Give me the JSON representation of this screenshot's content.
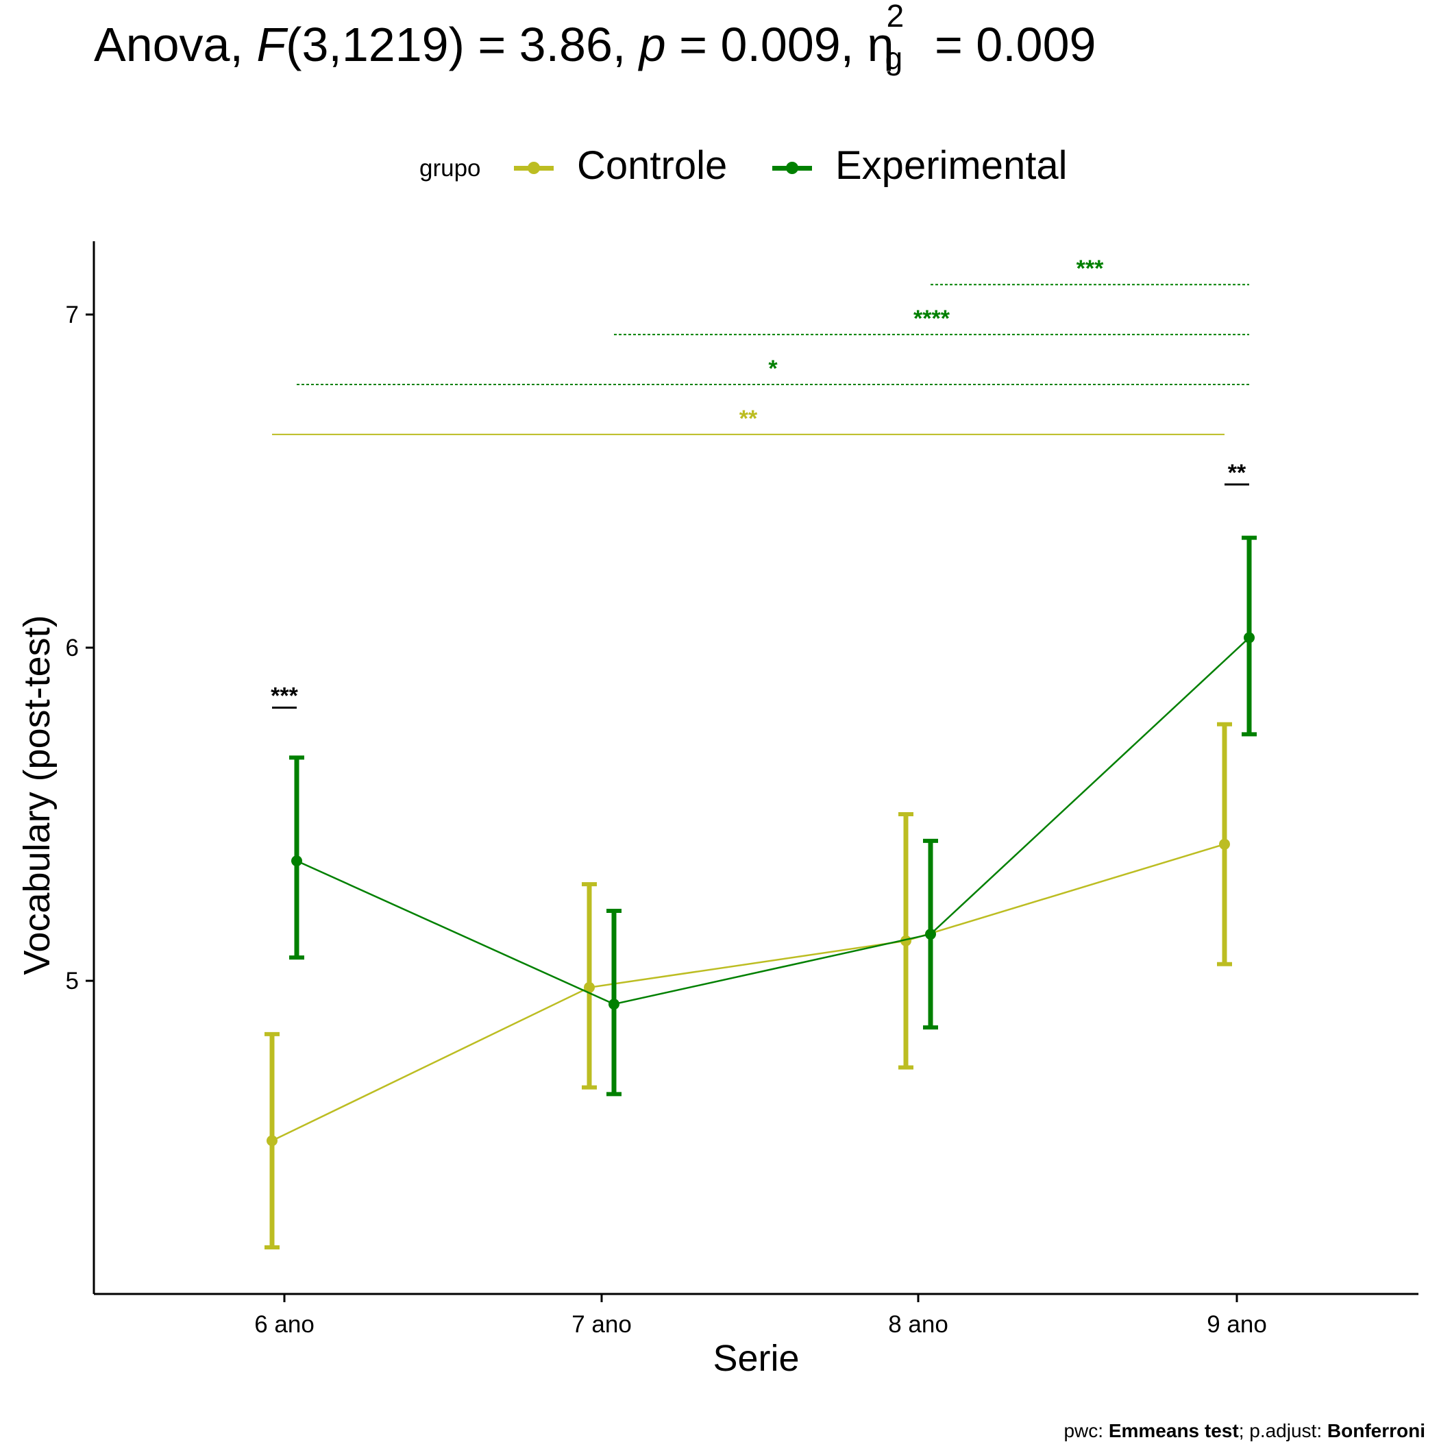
{
  "title": {
    "prefix": "Anova, ",
    "f_symbol": "F",
    "f_args": "(3,1219) = 3.86, ",
    "p_symbol": "p",
    "p_value": " = 0.009, ",
    "eta_symbol": "η",
    "eta_sup": "2",
    "eta_sub": "g",
    "eta_value": " = 0.009"
  },
  "legend": {
    "title": "grupo",
    "items": [
      {
        "label": "Controle",
        "color": "#BCBD22"
      },
      {
        "label": "Experimental",
        "color": "#008000"
      }
    ]
  },
  "caption": {
    "prefix": "pwc: ",
    "test": "Emmeans test",
    "middle": "; p.adjust: ",
    "method": "Bonferroni"
  },
  "chart_data": {
    "type": "line",
    "title": "Anova, F(3,1219) = 3.86, p = 0.009, ηg2 = 0.009",
    "xlabel": "Serie",
    "ylabel": "Vocabulary (post-test)",
    "categories": [
      "6 ano",
      "7 ano",
      "8 ano",
      "9 ano"
    ],
    "ylim": [
      4.06,
      7.22
    ],
    "yticks": [
      5,
      6,
      7
    ],
    "grid": false,
    "legend_position": "top",
    "series": [
      {
        "name": "Controle",
        "color": "#BCBD22",
        "values": [
          4.52,
          4.98,
          5.12,
          5.41
        ],
        "error_low": [
          4.2,
          4.68,
          4.74,
          5.05
        ],
        "error_high": [
          4.84,
          5.29,
          5.5,
          5.77
        ]
      },
      {
        "name": "Experimental",
        "color": "#008000",
        "values": [
          5.36,
          4.93,
          5.14,
          6.03
        ],
        "error_low": [
          5.07,
          4.66,
          4.86,
          5.74
        ],
        "error_high": [
          5.67,
          5.21,
          5.42,
          6.33
        ]
      }
    ],
    "within_group_comparisons": [
      {
        "group": "Controle",
        "from": "6 ano",
        "to": "9 ano",
        "label": "**",
        "y": 6.64
      },
      {
        "group": "Experimental",
        "from": "6 ano",
        "to": "9 ano",
        "label": "*",
        "y": 6.79
      },
      {
        "group": "Experimental",
        "from": "7 ano",
        "to": "9 ano",
        "label": "****",
        "y": 6.94
      },
      {
        "group": "Experimental",
        "from": "8 ano",
        "to": "9 ano",
        "label": "***",
        "y": 7.09
      }
    ],
    "between_group_comparisons": [
      {
        "category": "6 ano",
        "label": "***",
        "y": 5.82
      },
      {
        "category": "9 ano",
        "label": "**",
        "y": 6.49
      }
    ]
  }
}
